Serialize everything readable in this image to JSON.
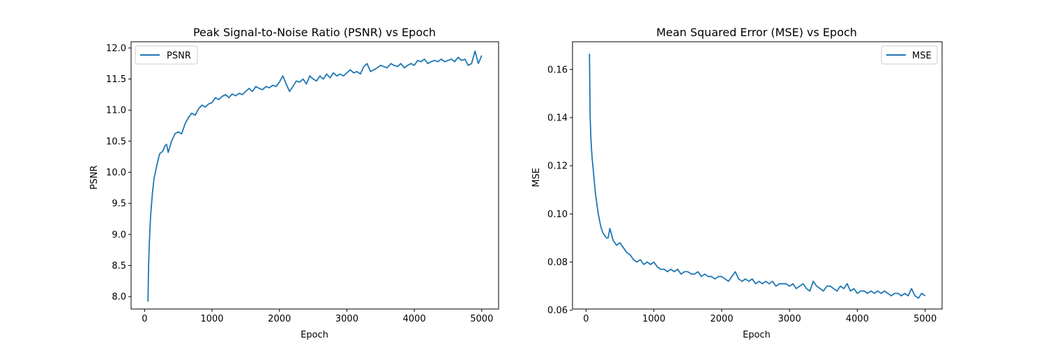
{
  "figure": {
    "background": "#ffffff"
  },
  "chart_data": [
    {
      "type": "line",
      "title": "Peak Signal-to-Noise Ratio (PSNR) vs Epoch",
      "xlabel": "Epoch",
      "ylabel": "PSNR",
      "xlim": [
        -200,
        5250
      ],
      "ylim": [
        7.8,
        12.1
      ],
      "xticks": [
        0,
        1000,
        2000,
        3000,
        4000,
        5000
      ],
      "xtick_labels": [
        "0",
        "1000",
        "2000",
        "3000",
        "4000",
        "5000"
      ],
      "yticks": [
        8.0,
        8.5,
        9.0,
        9.5,
        10.0,
        10.5,
        11.0,
        11.5,
        12.0
      ],
      "ytick_labels": [
        "8.0",
        "8.5",
        "9.0",
        "9.5",
        "10.0",
        "10.5",
        "11.0",
        "11.5",
        "12.0"
      ],
      "grid": false,
      "legend": {
        "position": "top-left",
        "entries": [
          "PSNR"
        ]
      },
      "series": [
        {
          "name": "PSNR",
          "color": "#1f77b4",
          "x": [
            50,
            60,
            70,
            80,
            90,
            100,
            120,
            140,
            160,
            180,
            200,
            225,
            250,
            275,
            300,
            325,
            350,
            400,
            450,
            500,
            550,
            600,
            650,
            700,
            750,
            800,
            850,
            900,
            950,
            1000,
            1050,
            1100,
            1150,
            1200,
            1250,
            1300,
            1350,
            1400,
            1450,
            1500,
            1550,
            1600,
            1650,
            1700,
            1750,
            1800,
            1850,
            1900,
            1950,
            2000,
            2050,
            2100,
            2150,
            2200,
            2250,
            2300,
            2350,
            2400,
            2450,
            2500,
            2550,
            2600,
            2650,
            2700,
            2750,
            2800,
            2850,
            2900,
            2950,
            3000,
            3050,
            3100,
            3150,
            3200,
            3250,
            3300,
            3350,
            3400,
            3450,
            3500,
            3550,
            3600,
            3650,
            3700,
            3750,
            3800,
            3850,
            3900,
            3950,
            4000,
            4050,
            4100,
            4150,
            4200,
            4250,
            4300,
            4350,
            4400,
            4450,
            4500,
            4550,
            4600,
            4650,
            4700,
            4750,
            4800,
            4850,
            4900,
            4950,
            5000
          ],
          "y": [
            7.92,
            8.5,
            8.85,
            9.1,
            9.3,
            9.45,
            9.7,
            9.9,
            10.0,
            10.1,
            10.2,
            10.3,
            10.32,
            10.35,
            10.42,
            10.45,
            10.32,
            10.5,
            10.62,
            10.65,
            10.62,
            10.78,
            10.88,
            10.95,
            10.92,
            11.02,
            11.08,
            11.05,
            11.1,
            11.12,
            11.2,
            11.17,
            11.22,
            11.25,
            11.2,
            11.26,
            11.23,
            11.27,
            11.25,
            11.3,
            11.35,
            11.3,
            11.38,
            11.35,
            11.33,
            11.38,
            11.36,
            11.4,
            11.38,
            11.45,
            11.55,
            11.42,
            11.3,
            11.38,
            11.47,
            11.45,
            11.5,
            11.42,
            11.55,
            11.5,
            11.47,
            11.55,
            11.5,
            11.58,
            11.52,
            11.6,
            11.55,
            11.58,
            11.55,
            11.6,
            11.65,
            11.6,
            11.62,
            11.58,
            11.7,
            11.75,
            11.62,
            11.65,
            11.68,
            11.72,
            11.7,
            11.68,
            11.75,
            11.72,
            11.7,
            11.75,
            11.68,
            11.72,
            11.75,
            11.72,
            11.8,
            11.78,
            11.82,
            11.75,
            11.78,
            11.8,
            11.78,
            11.82,
            11.78,
            11.8,
            11.82,
            11.78,
            11.85,
            11.8,
            11.82,
            11.72,
            11.75,
            11.95,
            11.75,
            11.88
          ]
        }
      ]
    },
    {
      "type": "line",
      "title": "Mean Squared Error (MSE) vs Epoch",
      "xlabel": "Epoch",
      "ylabel": "MSE",
      "xlim": [
        -200,
        5250
      ],
      "ylim": [
        0.0605,
        0.1715
      ],
      "xticks": [
        0,
        1000,
        2000,
        3000,
        4000,
        5000
      ],
      "xtick_labels": [
        "0",
        "1000",
        "2000",
        "3000",
        "4000",
        "5000"
      ],
      "yticks": [
        0.06,
        0.08,
        0.1,
        0.12,
        0.14,
        0.16
      ],
      "ytick_labels": [
        "0.06",
        "0.08",
        "0.10",
        "0.12",
        "0.14",
        "0.16"
      ],
      "grid": false,
      "legend": {
        "position": "top-right",
        "entries": [
          "MSE"
        ]
      },
      "series": [
        {
          "name": "MSE",
          "color": "#1f77b4",
          "x": [
            50,
            60,
            70,
            80,
            90,
            100,
            120,
            140,
            160,
            180,
            200,
            225,
            250,
            275,
            300,
            325,
            350,
            400,
            450,
            500,
            550,
            600,
            650,
            700,
            750,
            800,
            850,
            900,
            950,
            1000,
            1050,
            1100,
            1150,
            1200,
            1250,
            1300,
            1350,
            1400,
            1450,
            1500,
            1550,
            1600,
            1650,
            1700,
            1750,
            1800,
            1850,
            1900,
            1950,
            2000,
            2050,
            2100,
            2150,
            2200,
            2250,
            2300,
            2350,
            2400,
            2450,
            2500,
            2550,
            2600,
            2650,
            2700,
            2750,
            2800,
            2850,
            2900,
            2950,
            3000,
            3050,
            3100,
            3150,
            3200,
            3250,
            3300,
            3350,
            3400,
            3450,
            3500,
            3550,
            3600,
            3650,
            3700,
            3750,
            3800,
            3850,
            3900,
            3950,
            4000,
            4050,
            4100,
            4150,
            4200,
            4250,
            4300,
            4350,
            4400,
            4450,
            4500,
            4550,
            4600,
            4650,
            4700,
            4750,
            4800,
            4850,
            4900,
            4950,
            5000
          ],
          "y": [
            0.1665,
            0.14,
            0.132,
            0.127,
            0.123,
            0.12,
            0.114,
            0.108,
            0.104,
            0.1,
            0.097,
            0.094,
            0.092,
            0.091,
            0.09,
            0.09,
            0.094,
            0.089,
            0.087,
            0.088,
            0.086,
            0.084,
            0.083,
            0.081,
            0.08,
            0.081,
            0.079,
            0.08,
            0.079,
            0.08,
            0.078,
            0.077,
            0.077,
            0.076,
            0.077,
            0.076,
            0.077,
            0.075,
            0.076,
            0.076,
            0.075,
            0.075,
            0.076,
            0.074,
            0.075,
            0.074,
            0.074,
            0.073,
            0.074,
            0.074,
            0.073,
            0.072,
            0.074,
            0.076,
            0.073,
            0.072,
            0.073,
            0.072,
            0.073,
            0.071,
            0.072,
            0.071,
            0.072,
            0.071,
            0.072,
            0.07,
            0.071,
            0.071,
            0.071,
            0.07,
            0.071,
            0.069,
            0.07,
            0.071,
            0.069,
            0.068,
            0.072,
            0.07,
            0.069,
            0.068,
            0.07,
            0.07,
            0.069,
            0.068,
            0.07,
            0.069,
            0.071,
            0.068,
            0.069,
            0.067,
            0.068,
            0.068,
            0.067,
            0.068,
            0.067,
            0.068,
            0.067,
            0.068,
            0.067,
            0.066,
            0.067,
            0.067,
            0.066,
            0.067,
            0.066,
            0.069,
            0.066,
            0.065,
            0.067,
            0.066
          ]
        }
      ]
    }
  ]
}
